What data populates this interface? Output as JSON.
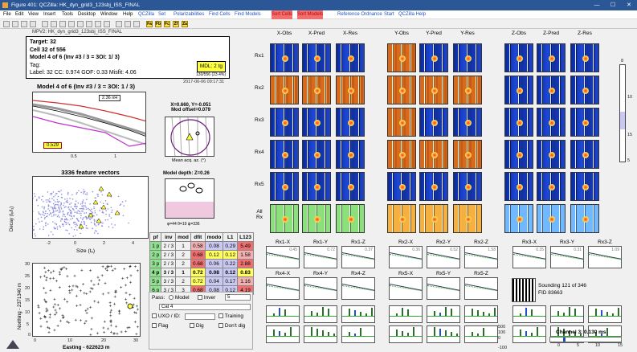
{
  "window": {
    "title": "Figure 401: QCZilla: HK_dyn_grid3_123sbj_ISS_FINAL",
    "min": "—",
    "max": "☐",
    "close": "✕"
  },
  "menu": {
    "std": [
      "File",
      "Edit",
      "View",
      "Insert",
      "Tools",
      "Desktop",
      "Window",
      "Help"
    ],
    "qczilla": "QCZilla",
    "set": "Set",
    "polar": "Polarizabilities",
    "findcells": "Find Cells",
    "findmodels": "Find Models",
    "sortcells": "Sort Cells",
    "sortmodels": "Sort Models",
    "refordnance": "Reference Ordnance",
    "start": "Start",
    "help": "QCZilla Help"
  },
  "toolbar": {
    "fa": "Fa",
    "fb": "Fb",
    "fc": "Fc",
    "zf": "Zf",
    "za": "Za"
  },
  "header": {
    "file": "MPV2: HK_dyn_grid3_123sbj_ISS_FINAL"
  },
  "target": {
    "title": "Target: 32",
    "cell": "Cell 32 of 556",
    "model": "Model 4 of 6 (Inv #3 / 3 = 3OI: 1/ 3)",
    "tag": "Tag:",
    "stats": "Label: 32   CC: 0.974   GOF: 0.33   Misfit: 4.06",
    "mdl": "MDL: 2 tg",
    "progress": "130/556 (23.4%)",
    "date": "2017-06-06 09:17:31"
  },
  "decay": {
    "title": "Model 4 of 6 (Inv #3 / 3 = 3OI: 1 / 3)",
    "legend": "2.36 nH",
    "badge": "0.529",
    "xt1": "0.5",
    "xt2": "1"
  },
  "feature": {
    "title": "3336 feature vectors",
    "xlabel": "Size (tₒ)",
    "ylabel": "Decay (lₒ/l₁)",
    "xticks": [
      "-2",
      "0",
      "2",
      "4"
    ]
  },
  "map": {
    "xlabel": "Easting - 622623 m",
    "ylabel": "Northing - 2371340 m",
    "xticks": [
      "0",
      "10",
      "20",
      "30"
    ],
    "yticks": [
      "30",
      "25",
      "20",
      "15",
      "10",
      "5",
      "0"
    ]
  },
  "mod": {
    "title1": "X=0.660, Y=-0.051",
    "title2": "Mod offset=0.079",
    "xlabel": "Mean acq. az. (°)",
    "depth": "Model depth: Z=0.26",
    "caption": "φ=44  θ=19  ψ=336"
  },
  "grid": {
    "cols": [
      "X-Obs",
      "X-Pred",
      "X-Res",
      "Y-Obs",
      "Y-Pred",
      "Y-Res",
      "Z-Obs",
      "Z-Pred",
      "Z-Res"
    ],
    "rows": [
      "Rx1",
      "Rx2",
      "Rx3",
      "Rx4",
      "Rx5",
      "All Rx"
    ]
  },
  "colorbar": {
    "ticks": [
      "8",
      "10",
      "15",
      "5"
    ]
  },
  "table": {
    "headers": [
      "pf",
      "inv",
      "mod",
      "dfit",
      "modo",
      "L1",
      "L123"
    ],
    "rows": [
      [
        "1 p",
        "2 / 3",
        "1",
        "0.58",
        "0.08",
        "0.29",
        "5.49"
      ],
      [
        "2 p",
        "2 / 3",
        "2",
        "0.68",
        "0.12",
        "0.12",
        "1.58"
      ],
      [
        "3 p",
        "2 / 3",
        "2",
        "0.68",
        "0.06",
        "0.22",
        "2.88"
      ],
      [
        "4 p",
        "3 / 3",
        "1",
        "0.72",
        "0.08",
        "0.12",
        "0.83"
      ],
      [
        "5 p",
        "3 / 3",
        "2",
        "0.72",
        "0.04",
        "0.17",
        "1.16"
      ],
      [
        "6 p",
        "3 / 3",
        "3",
        "0.68",
        "0.08",
        "0.12",
        "4.19"
      ]
    ]
  },
  "rxplots": {
    "row1": [
      "Rx1-X",
      "Rx1-Y",
      "Rx1-Z",
      "Rx2-X",
      "Rx2-Y",
      "Rx2-Z",
      "Rx3-X",
      "Rx3-Y",
      "Rx3-Z"
    ],
    "row2": [
      "Rx4-X",
      "Rx4-Y",
      "Rx4-Z",
      "Rx5-X",
      "Rx5-Y",
      "Rx5-Z"
    ],
    "vals1": [
      "0.45",
      "0.72",
      "0.37",
      "0.36",
      "0.52",
      "1.58",
      "0.35",
      "0.31",
      "1.09"
    ]
  },
  "sounding": {
    "line1": "Sounding 121 of 346",
    "line2": "FID 83663"
  },
  "pass": {
    "label": "Pass:",
    "model": "Model",
    "inver": "Inver",
    "count": "5",
    "cat": "Cat 4",
    "uxo": "UXO / ID:",
    "training": "Training",
    "flag": "Flag",
    "dig": "Dig",
    "dontdig": "Don't dig"
  },
  "barscale": {
    "ticks": [
      "500",
      "100",
      "0",
      "-100"
    ]
  },
  "channel": {
    "label": "Channel 3:",
    "value": "0.130 ms",
    "ticks": [
      "0",
      "5",
      "10",
      "15"
    ]
  }
}
